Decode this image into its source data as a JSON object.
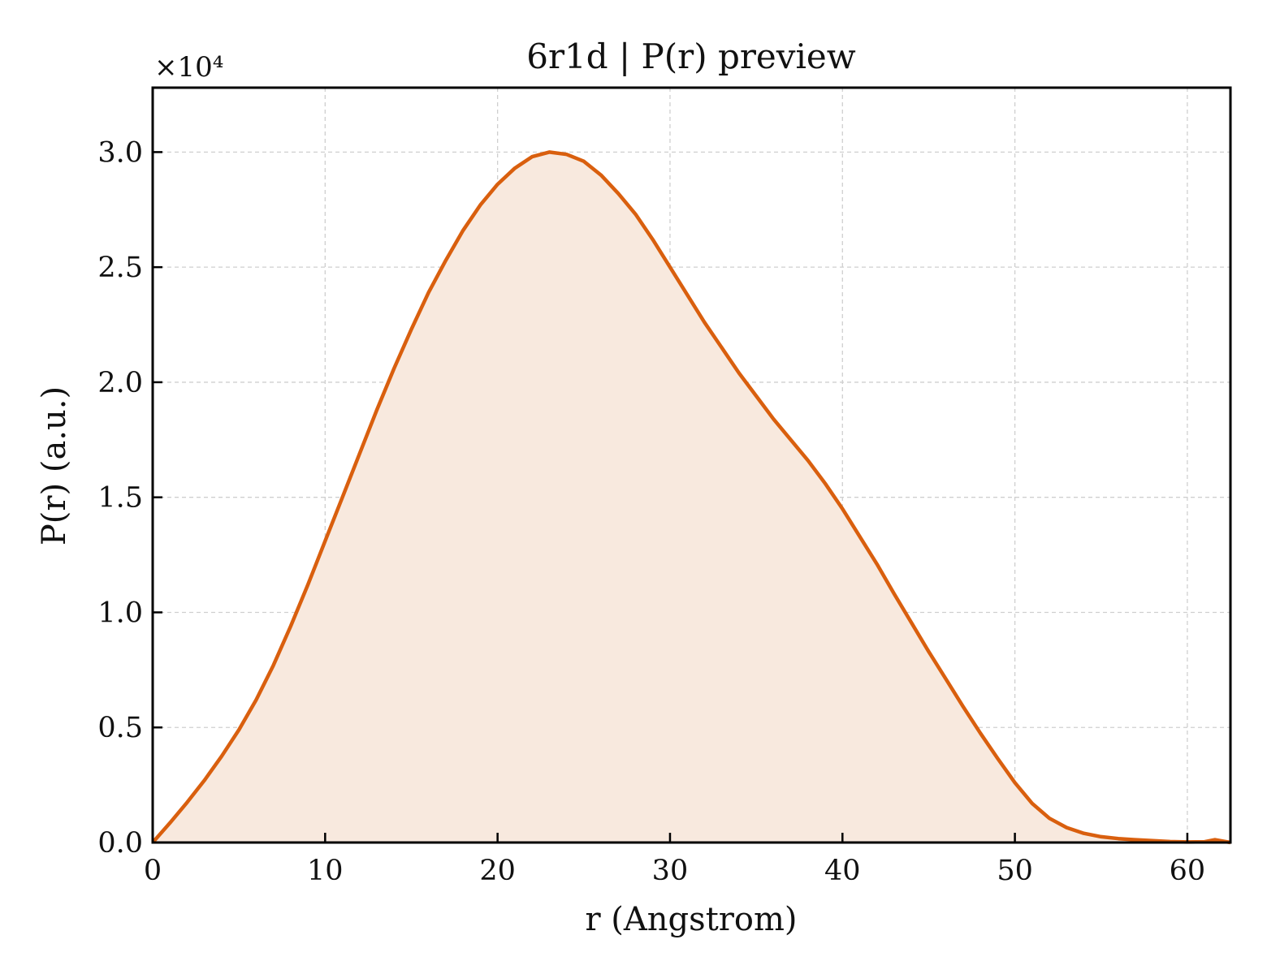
{
  "chart_data": {
    "type": "area",
    "title": "6r1d | P(r) preview",
    "xlabel": "r (Angstrom)",
    "ylabel": "P(r) (a.u.)",
    "y_offset_text": "×10⁴",
    "xlim": [
      0,
      62.5
    ],
    "ylim": [
      0,
      3.28
    ],
    "y_scale_note": "values in units of 1e4",
    "xticks": [
      0,
      10,
      20,
      30,
      40,
      50,
      60
    ],
    "xtick_labels": [
      "0",
      "10",
      "20",
      "30",
      "40",
      "50",
      "60"
    ],
    "yticks": [
      0,
      0.5,
      1.0,
      1.5,
      2.0,
      2.5,
      3.0
    ],
    "ytick_labels": [
      "0.0",
      "0.5",
      "1.0",
      "1.5",
      "2.0",
      "2.5",
      "3.0"
    ],
    "grid": true,
    "legend": "none",
    "line_color": "#d95f0e",
    "fill_color": "#f8e9de",
    "series": [
      {
        "x": [
          0,
          1,
          2,
          3,
          4,
          5,
          6,
          7,
          8,
          9,
          10,
          11,
          12,
          13,
          14,
          15,
          16,
          17,
          18,
          19,
          20,
          21,
          22,
          23,
          24,
          25,
          26,
          27,
          28,
          29,
          30,
          31,
          32,
          33,
          34,
          35,
          36,
          37,
          38,
          39,
          40,
          41,
          42,
          43,
          44,
          45,
          46,
          47,
          48,
          49,
          50,
          51,
          52,
          53,
          54,
          55,
          56,
          57,
          58,
          59,
          60,
          61,
          61.6,
          62.5
        ],
        "y": [
          0,
          0.085,
          0.175,
          0.27,
          0.375,
          0.49,
          0.62,
          0.77,
          0.94,
          1.12,
          1.31,
          1.5,
          1.69,
          1.88,
          2.06,
          2.23,
          2.39,
          2.53,
          2.66,
          2.77,
          2.86,
          2.93,
          2.98,
          3.0,
          2.99,
          2.96,
          2.9,
          2.82,
          2.73,
          2.62,
          2.5,
          2.38,
          2.26,
          2.15,
          2.04,
          1.94,
          1.84,
          1.75,
          1.66,
          1.56,
          1.45,
          1.33,
          1.21,
          1.08,
          0.955,
          0.83,
          0.71,
          0.59,
          0.475,
          0.365,
          0.26,
          0.17,
          0.105,
          0.065,
          0.04,
          0.025,
          0.017,
          0.012,
          0.008,
          0.004,
          0.002,
          0.003,
          0.012,
          0.0
        ]
      }
    ]
  }
}
